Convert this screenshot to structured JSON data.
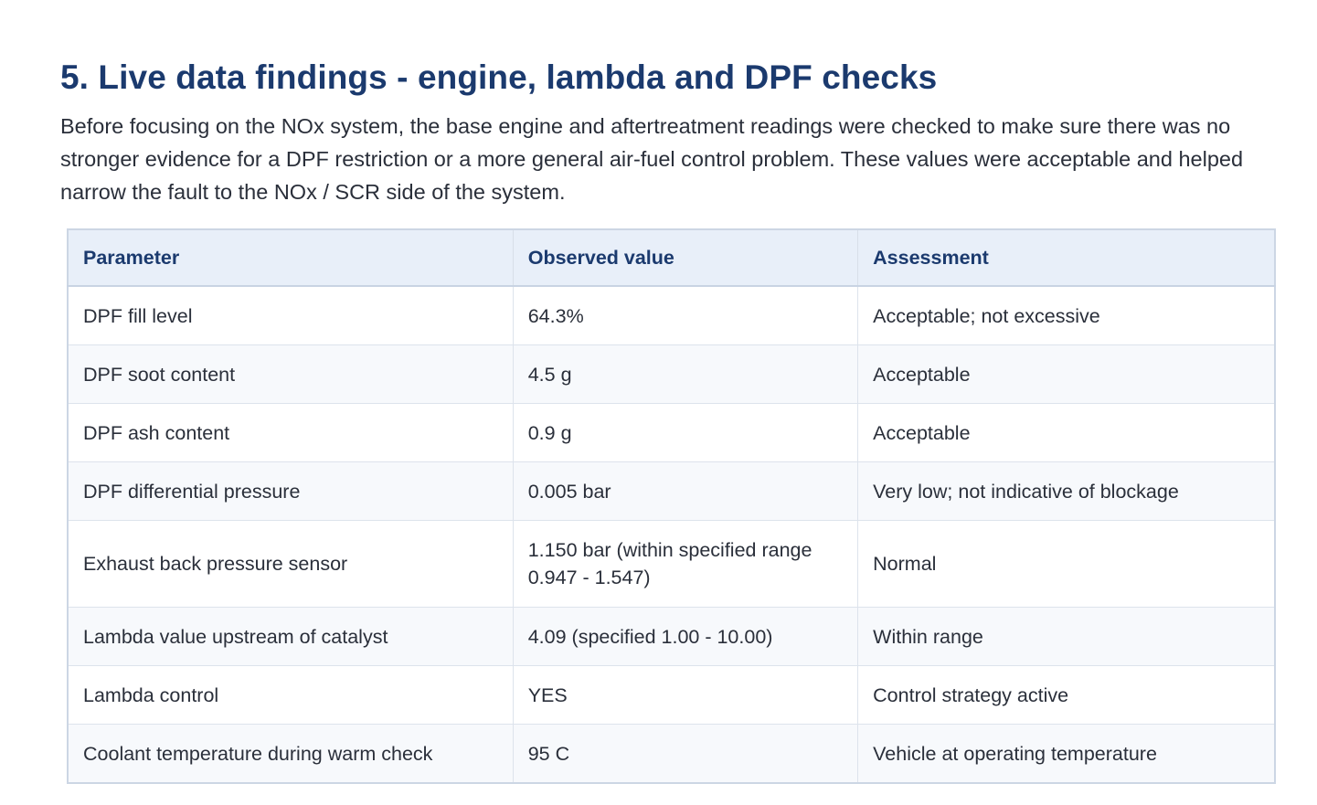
{
  "section": {
    "title": "5. Live data findings - engine, lambda and DPF checks",
    "intro": "Before focusing on the NOx system, the base engine and aftertreatment readings were checked to make sure there was no stronger evidence for a DPF restriction or a more general air-fuel control problem. These values were acceptable and helped narrow the fault to the NOx / SCR side of the system."
  },
  "table": {
    "headers": [
      "Parameter",
      "Observed value",
      "Assessment"
    ],
    "rows": [
      {
        "parameter": "DPF fill level",
        "value": "64.3%",
        "assessment": "Acceptable; not excessive"
      },
      {
        "parameter": "DPF soot content",
        "value": "4.5 g",
        "assessment": "Acceptable"
      },
      {
        "parameter": "DPF ash content",
        "value": "0.9 g",
        "assessment": "Acceptable"
      },
      {
        "parameter": "DPF differential pressure",
        "value": "0.005 bar",
        "assessment": "Very low; not indicative of blockage"
      },
      {
        "parameter": "Exhaust back pressure sensor",
        "value": "1.150 bar (within specified range 0.947 - 1.547)",
        "assessment": "Normal"
      },
      {
        "parameter": "Lambda value upstream of catalyst",
        "value": "4.09 (specified 1.00 - 10.00)",
        "assessment": "Within range"
      },
      {
        "parameter": "Lambda control",
        "value": "YES",
        "assessment": "Control strategy active"
      },
      {
        "parameter": "Coolant temperature during warm check",
        "value": "95 C",
        "assessment": "Vehicle at operating temperature"
      }
    ]
  }
}
